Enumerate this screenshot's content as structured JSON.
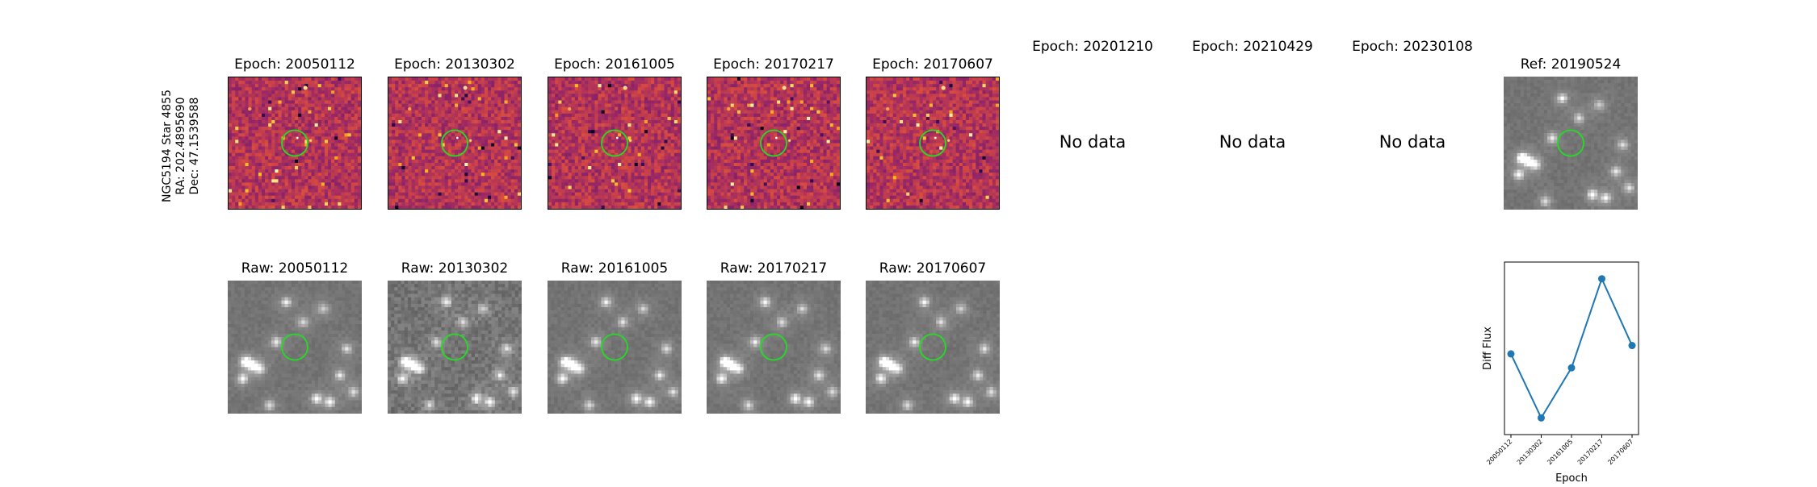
{
  "target": {
    "galaxy_star": "NGC5194 Star 4855",
    "ra": "RA: 202.4895690",
    "dec": "Dec: 47.1539588"
  },
  "diff_panels": [
    {
      "title": "Epoch: 20050112",
      "has_data": true
    },
    {
      "title": "Epoch: 20130302",
      "has_data": true
    },
    {
      "title": "Epoch: 20161005",
      "has_data": true
    },
    {
      "title": "Epoch: 20170217",
      "has_data": true
    },
    {
      "title": "Epoch: 20170607",
      "has_data": true
    },
    {
      "title": "Epoch: 20201210",
      "has_data": false,
      "message": "No data"
    },
    {
      "title": "Epoch: 20210429",
      "has_data": false,
      "message": "No data"
    },
    {
      "title": "Epoch: 20230108",
      "has_data": false,
      "message": "No data"
    }
  ],
  "ref_panel": {
    "title": "Ref: 20190524"
  },
  "raw_panels": [
    {
      "title": "Raw: 20050112"
    },
    {
      "title": "Raw: 20130302"
    },
    {
      "title": "Raw: 20161005"
    },
    {
      "title": "Raw: 20170217"
    },
    {
      "title": "Raw: 20170607"
    }
  ],
  "colors": {
    "marker_circle": "#22dd22",
    "series": "#1f77b4",
    "diff_colormap": "magma",
    "raw_colormap": "gray"
  },
  "chart_data": {
    "type": "line",
    "categories": [
      "20050112",
      "20130302",
      "20161005",
      "20170217",
      "20170607"
    ],
    "values": [
      0.46,
      0.0,
      0.36,
      1.0,
      0.52
    ],
    "xlabel": "Epoch",
    "ylabel": "Diff Flux",
    "ylim": [
      -0.12,
      1.12
    ],
    "y_ticks_shown": false,
    "grid": false,
    "marker": "circle"
  }
}
